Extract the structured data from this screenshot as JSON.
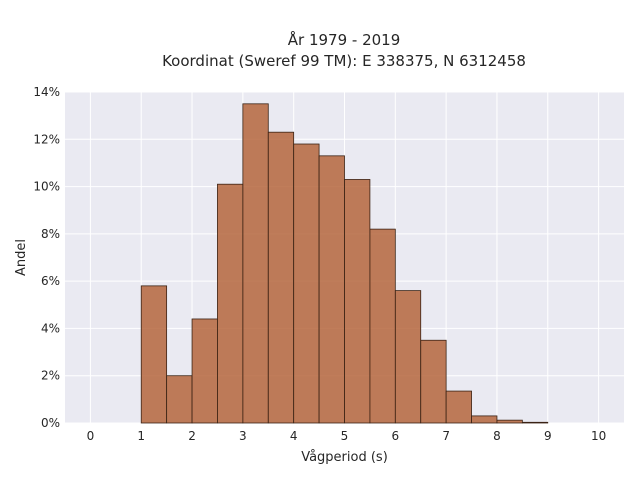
{
  "chart_data": {
    "type": "bar",
    "title_lines": [
      "År 1979 - 2019",
      "Koordinat (Sweref 99 TM): E 338375, N 6312458"
    ],
    "xlabel": "Vågperiod (s)",
    "ylabel": "Andel",
    "xlim": [
      -0.5,
      10.5
    ],
    "ylim": [
      0,
      14
    ],
    "xticks": [
      0,
      1,
      2,
      3,
      4,
      5,
      6,
      7,
      8,
      9,
      10
    ],
    "yticks": [
      0,
      2,
      4,
      6,
      8,
      10,
      12,
      14
    ],
    "ytick_labels": [
      "0%",
      "2%",
      "4%",
      "6%",
      "8%",
      "10%",
      "12%",
      "14%"
    ],
    "bin_width": 0.5,
    "bins_start": [
      1.0,
      1.5,
      2.0,
      2.5,
      3.0,
      3.5,
      4.0,
      4.5,
      5.0,
      5.5,
      6.0,
      6.5,
      7.0,
      7.5,
      8.0,
      8.5
    ],
    "values": [
      5.8,
      2.0,
      4.4,
      10.1,
      13.5,
      12.3,
      11.8,
      11.3,
      10.3,
      8.2,
      5.6,
      3.5,
      1.35,
      0.3,
      0.12,
      0.03
    ],
    "grid": true,
    "background": "#eaeaf2",
    "bar_color": "#b5663d"
  }
}
